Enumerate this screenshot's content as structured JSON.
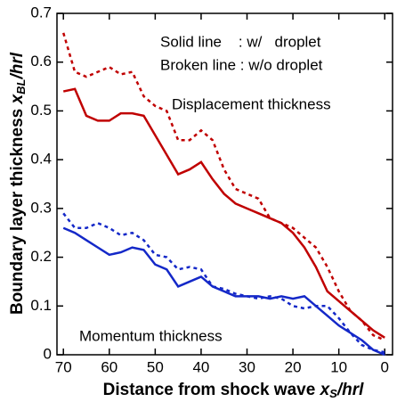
{
  "chart_data": {
    "type": "line",
    "xlabel": {
      "text": "Distance from shock wave ",
      "var": "x",
      "sub": "S",
      "unit": "/hrl"
    },
    "ylabel": {
      "text": "Boundary layer thickness ",
      "var": "x",
      "sub": "BL",
      "unit": "/hrl"
    },
    "x": [
      70,
      67.5,
      65,
      62.5,
      60,
      57.5,
      55,
      52.5,
      50,
      47.5,
      45,
      42.5,
      40,
      37.5,
      35,
      32.5,
      30,
      27.5,
      25,
      22.5,
      20,
      17.5,
      15,
      12.5,
      10,
      7.5,
      5,
      2.5,
      0
    ],
    "series": [
      {
        "color": "#c00000",
        "dashed": false,
        "values": [
          0.54,
          0.545,
          0.49,
          0.48,
          0.48,
          0.495,
          0.495,
          0.49,
          0.45,
          0.41,
          0.37,
          0.38,
          0.395,
          0.36,
          0.33,
          0.31,
          0.3,
          0.29,
          0.28,
          0.27,
          0.25,
          0.22,
          0.18,
          0.13,
          0.11,
          0.09,
          0.07,
          0.05,
          0.035
        ]
      },
      {
        "color": "#c00000",
        "dashed": true,
        "values": [
          0.66,
          0.58,
          0.57,
          0.58,
          0.59,
          0.575,
          0.58,
          0.53,
          0.51,
          0.5,
          0.44,
          0.44,
          0.46,
          0.44,
          0.38,
          0.34,
          0.33,
          0.32,
          0.28,
          0.27,
          0.26,
          0.24,
          0.22,
          0.18,
          0.13,
          0.09,
          0.07,
          0.04,
          0.03
        ]
      },
      {
        "color": "#1428c8",
        "dashed": false,
        "values": [
          0.26,
          0.25,
          0.235,
          0.22,
          0.205,
          0.21,
          0.22,
          0.215,
          0.185,
          0.175,
          0.14,
          0.15,
          0.16,
          0.14,
          0.13,
          0.12,
          0.12,
          0.12,
          0.115,
          0.12,
          0.115,
          0.12,
          0.1,
          0.08,
          0.06,
          0.045,
          0.03,
          0.01,
          0
        ]
      },
      {
        "color": "#1428c8",
        "dashed": true,
        "values": [
          0.29,
          0.26,
          0.26,
          0.27,
          0.26,
          0.245,
          0.25,
          0.235,
          0.205,
          0.2,
          0.175,
          0.18,
          0.175,
          0.14,
          0.135,
          0.125,
          0.12,
          0.115,
          0.12,
          0.115,
          0.1,
          0.095,
          0.1,
          0.1,
          0.075,
          0.045,
          0.02,
          0.01,
          0.005
        ]
      }
    ],
    "annotations": [
      {
        "text": "Solid line    : w/   droplet",
        "color": "#000000"
      },
      {
        "text": "Broken line : w/o droplet",
        "color": "#000000"
      },
      {
        "text": "Displacement thickness",
        "color": "#c00000"
      },
      {
        "text": "Momentum thickness",
        "color": "#1428c8"
      }
    ],
    "xlim": [
      71.4,
      -1.7
    ],
    "ylim": [
      0,
      0.7
    ],
    "xticks": [
      70,
      60,
      50,
      40,
      30,
      20,
      10,
      0
    ],
    "yticks": [
      0,
      0.1,
      0.2,
      0.3,
      0.4,
      0.5,
      0.6,
      0.7
    ],
    "grid": false
  }
}
